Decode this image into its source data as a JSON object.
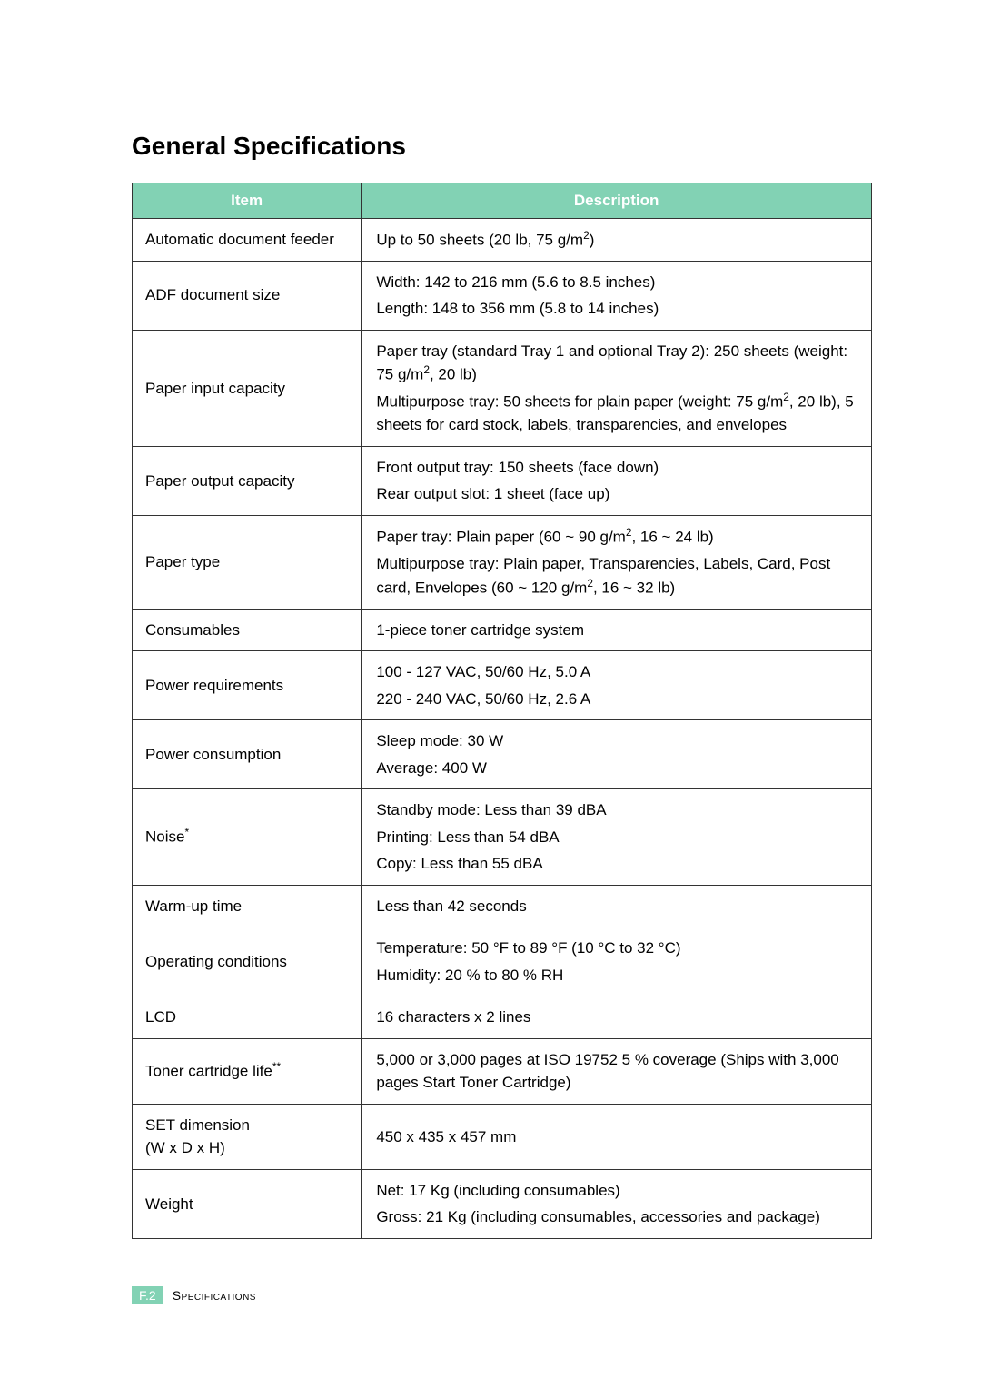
{
  "title": "General Specifications",
  "headers": {
    "item": "Item",
    "desc": "Description"
  },
  "table": {
    "border_color": "#333333",
    "header_bg": "#82d2b4",
    "header_fg": "#ffffff"
  },
  "rows": [
    {
      "item_html": "Automatic document feeder",
      "desc_html": "Up to 50 sheets (20 lb, 75 g/m<sup>2</sup>)"
    },
    {
      "item_html": "ADF document size",
      "desc_html": "<p>Width: 142 to 216 mm (5.6 to 8.5 inches)</p><p>Length: 148 to 356 mm (5.8 to 14 inches)</p>"
    },
    {
      "item_html": "Paper input capacity",
      "desc_html": "<p>Paper tray (standard Tray 1 and optional Tray 2): 250 sheets (weight: 75 g/m<sup>2</sup>, 20 lb)</p><p>Multipurpose tray: 50 sheets for plain paper (weight: 75 g/m<sup>2</sup>, 20 lb), 5 sheets for card stock, labels, transparencies, and envelopes</p>"
    },
    {
      "item_html": "Paper output capacity",
      "desc_html": "<p>Front output tray: 150 sheets (face down)</p><p>Rear output slot: 1 sheet (face up)</p>"
    },
    {
      "item_html": "Paper type",
      "desc_html": "<p>Paper tray: Plain paper (60 ~ 90 g/m<sup>2</sup>, 16 ~ 24 lb)</p><p>Multipurpose tray: Plain paper, Transparencies, Labels, Card, Post card, Envelopes (60 ~ 120 g/m<sup>2</sup>, 16 ~ 32 lb)</p>"
    },
    {
      "item_html": "Consumables",
      "desc_html": "1-piece toner cartridge system"
    },
    {
      "item_html": "Power requirements",
      "desc_html": "<p>100 - 127 VAC, 50/60 Hz, 5.0 A</p><p>220 - 240 VAC, 50/60 Hz, 2.6 A</p>"
    },
    {
      "item_html": "Power consumption",
      "desc_html": "<p>Sleep mode: 30 W</p><p>Average: 400 W</p>"
    },
    {
      "item_html": "Noise<sup>*</sup>",
      "desc_html": "<p>Standby mode: Less than 39 dBA</p><p>Printing: Less than 54 dBA</p><p>Copy: Less than 55 dBA</p>"
    },
    {
      "item_html": "Warm-up time",
      "desc_html": "Less than 42 seconds"
    },
    {
      "item_html": "Operating conditions",
      "desc_html": "<p>Temperature: 50 &deg;F to 89 &deg;F (10 &deg;C to 32 &deg;C)</p><p>Humidity: 20 % to 80 % RH</p>"
    },
    {
      "item_html": "LCD",
      "desc_html": "16 characters x 2 lines"
    },
    {
      "item_html": "Toner cartridge life<sup>**</sup>",
      "desc_html": "5,000 or 3,000 pages at ISO 19752 5 % coverage (Ships with 3,000 pages Start Toner Cartridge)"
    },
    {
      "item_html": "SET dimension<br>(W x D x H)",
      "desc_html": "450 x 435 x 457 mm"
    },
    {
      "item_html": "Weight",
      "desc_html": "<p>Net: 17 Kg (including consumables)</p><p>Gross: 21 Kg (including consumables, accessories and package)</p>"
    }
  ],
  "footer": {
    "badge": "F.2",
    "label": "Specifications"
  }
}
